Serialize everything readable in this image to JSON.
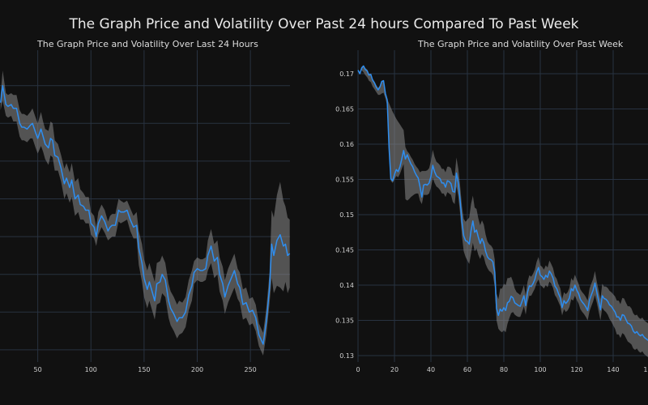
{
  "title": "The Graph Price and Volatility Over Past 24 hours Compared To Past Week",
  "colors": {
    "background": "#111111",
    "grid": "#283241",
    "price_line": "#2e8ef0",
    "volatility_band": "#8a8a8a"
  },
  "chart_data": [
    {
      "type": "line",
      "title": "The Graph Price and Volatility Over Last 24 Hours",
      "xlabel": "",
      "ylabel": "",
      "xlim": [
        15,
        287
      ],
      "ylim": [
        0,
        9
      ],
      "grid": true,
      "legend": "none",
      "x_ticks": [
        50,
        100,
        150,
        200,
        250
      ],
      "y_ticks": [
        1,
        2,
        3,
        4,
        5,
        6,
        7,
        8
      ],
      "y_tick_labels_visible": false,
      "series": [
        {
          "name": "Price",
          "x": [
            15,
            17,
            20,
            22,
            25,
            27,
            30,
            33,
            35,
            37,
            40,
            43,
            45,
            48,
            50,
            53,
            55,
            57,
            60,
            62,
            64,
            66,
            69,
            70,
            72,
            75,
            77,
            80,
            82,
            85,
            88,
            90,
            93,
            95,
            98,
            100,
            103,
            105,
            107,
            110,
            113,
            116,
            118,
            120,
            123,
            126,
            128,
            131,
            134,
            137,
            140,
            143,
            145,
            148,
            150,
            153,
            155,
            158,
            160,
            162,
            165,
            167,
            170,
            173,
            175,
            178,
            181,
            183,
            186,
            189,
            192,
            195,
            197,
            200,
            203,
            205,
            208,
            210,
            213,
            216,
            219,
            221,
            224,
            226,
            229,
            232,
            235,
            238,
            240,
            243,
            246,
            249,
            252,
            255,
            258,
            262,
            265,
            268,
            270,
            272,
            275,
            278,
            281,
            283,
            285,
            287
          ],
          "values": [
            7.55,
            8.0,
            7.5,
            7.45,
            7.5,
            7.4,
            7.4,
            7.0,
            6.9,
            6.9,
            6.85,
            6.95,
            7.0,
            6.75,
            6.6,
            6.85,
            6.65,
            6.45,
            6.35,
            6.6,
            6.55,
            6.15,
            6.1,
            6.0,
            5.8,
            5.4,
            5.55,
            5.3,
            5.5,
            5.0,
            5.1,
            4.85,
            4.8,
            4.7,
            4.7,
            4.35,
            4.25,
            4.0,
            4.35,
            4.55,
            4.4,
            4.15,
            4.25,
            4.3,
            4.3,
            4.7,
            4.65,
            4.65,
            4.7,
            4.45,
            4.25,
            4.3,
            3.7,
            3.3,
            2.9,
            2.6,
            2.8,
            2.5,
            2.3,
            2.75,
            2.8,
            3.0,
            2.85,
            2.3,
            2.1,
            1.95,
            1.75,
            1.85,
            1.85,
            2.0,
            2.45,
            2.7,
            3.05,
            3.15,
            3.1,
            3.1,
            3.15,
            3.5,
            3.75,
            3.35,
            3.45,
            3.0,
            2.75,
            2.4,
            2.7,
            2.9,
            3.1,
            2.75,
            2.65,
            2.2,
            2.25,
            2.0,
            2.05,
            1.85,
            1.4,
            1.15,
            1.75,
            2.65,
            3.8,
            3.5,
            3.9,
            4.05,
            3.75,
            3.8,
            3.5,
            3.55
          ],
          "band_half_width": [
            0.2,
            0.4,
            0.3,
            0.3,
            0.3,
            0.35,
            0.35,
            0.35,
            0.35,
            0.35,
            0.35,
            0.35,
            0.4,
            0.4,
            0.4,
            0.45,
            0.4,
            0.4,
            0.45,
            0.45,
            0.45,
            0.4,
            0.35,
            0.35,
            0.35,
            0.4,
            0.4,
            0.4,
            0.45,
            0.45,
            0.45,
            0.4,
            0.35,
            0.35,
            0.35,
            0.3,
            0.3,
            0.25,
            0.3,
            0.3,
            0.3,
            0.25,
            0.3,
            0.3,
            0.3,
            0.3,
            0.3,
            0.25,
            0.25,
            0.3,
            0.3,
            0.35,
            0.45,
            0.5,
            0.5,
            0.5,
            0.5,
            0.5,
            0.5,
            0.55,
            0.55,
            0.5,
            0.45,
            0.45,
            0.45,
            0.45,
            0.45,
            0.45,
            0.4,
            0.4,
            0.4,
            0.4,
            0.3,
            0.3,
            0.3,
            0.3,
            0.3,
            0.4,
            0.45,
            0.45,
            0.45,
            0.45,
            0.45,
            0.45,
            0.45,
            0.45,
            0.45,
            0.4,
            0.4,
            0.4,
            0.4,
            0.35,
            0.35,
            0.35,
            0.3,
            0.3,
            0.35,
            0.4,
            0.9,
            1.0,
            1.2,
            1.4,
            1.2,
            1.0,
            1.0,
            0.9
          ]
        }
      ]
    },
    {
      "type": "line",
      "title": "The Graph Price and Volatility Over Past Week",
      "xlabel": "",
      "ylabel": "",
      "xlim": [
        0,
        160
      ],
      "ylim": [
        0.1295,
        0.1735
      ],
      "grid": true,
      "legend": "none",
      "x_ticks": [
        0,
        20,
        40,
        60,
        80,
        100,
        120,
        140
      ],
      "x_tick_labels": [
        "0",
        "20",
        "40",
        "60",
        "80",
        "100",
        "120",
        "140"
      ],
      "y_ticks": [
        0.13,
        0.135,
        0.14,
        0.145,
        0.15,
        0.155,
        0.16,
        0.165,
        0.17
      ],
      "y_tick_labels": [
        "0.13",
        "0.135",
        "0.14",
        "0.145",
        "0.15",
        "0.155",
        "0.16",
        "0.165",
        "0.17"
      ],
      "series": [
        {
          "name": "Price",
          "x": [
            0,
            1,
            2,
            3,
            4,
            5,
            6,
            7,
            8,
            9,
            10,
            11,
            12,
            13,
            14,
            15,
            16,
            17,
            18,
            19,
            20,
            21,
            22,
            23,
            24,
            25,
            26,
            27,
            28,
            29,
            30,
            31,
            32,
            33,
            34,
            35,
            36,
            37,
            38,
            39,
            40,
            41,
            42,
            43,
            44,
            45,
            46,
            47,
            48,
            49,
            50,
            51,
            52,
            53,
            54,
            55,
            56,
            57,
            58,
            59,
            60,
            61,
            62,
            63,
            64,
            65,
            66,
            67,
            68,
            69,
            70,
            71,
            72,
            73,
            74,
            75,
            76,
            77,
            78,
            79,
            80,
            81,
            82,
            83,
            84,
            85,
            86,
            87,
            88,
            89,
            90,
            91,
            92,
            93,
            94,
            95,
            96,
            97,
            98,
            99,
            100,
            101,
            102,
            103,
            104,
            105,
            106,
            107,
            108,
            109,
            110,
            111,
            112,
            113,
            114,
            115,
            116,
            117,
            118,
            119,
            120,
            121,
            122,
            123,
            124,
            125,
            126,
            127,
            128,
            129,
            130,
            131,
            132,
            133,
            134,
            135,
            136,
            137,
            138,
            139,
            140,
            141,
            142,
            143,
            144,
            145,
            146,
            147,
            148,
            149,
            150,
            151,
            152,
            153,
            154,
            155,
            156,
            157,
            158,
            159,
            160
          ],
          "values": [
            0.1705,
            0.17,
            0.1708,
            0.1711,
            0.1706,
            0.1704,
            0.1698,
            0.1699,
            0.1691,
            0.1687,
            0.1681,
            0.1677,
            0.1681,
            0.1689,
            0.169,
            0.1672,
            0.1663,
            0.1595,
            0.1551,
            0.1548,
            0.1557,
            0.1564,
            0.1561,
            0.1568,
            0.1579,
            0.1591,
            0.1579,
            0.1585,
            0.1578,
            0.1572,
            0.1568,
            0.1561,
            0.1556,
            0.1552,
            0.154,
            0.1525,
            0.1542,
            0.1543,
            0.1542,
            0.1545,
            0.1554,
            0.157,
            0.1561,
            0.1555,
            0.1553,
            0.1551,
            0.1545,
            0.1545,
            0.1539,
            0.1548,
            0.1547,
            0.1544,
            0.1533,
            0.1532,
            0.1559,
            0.1545,
            0.1521,
            0.149,
            0.147,
            0.1463,
            0.1462,
            0.1458,
            0.1477,
            0.1491,
            0.1475,
            0.1478,
            0.1468,
            0.1459,
            0.1466,
            0.146,
            0.1448,
            0.144,
            0.1437,
            0.1436,
            0.1433,
            0.1418,
            0.1367,
            0.1357,
            0.1366,
            0.1363,
            0.1368,
            0.1364,
            0.1375,
            0.1377,
            0.1384,
            0.1382,
            0.1375,
            0.1373,
            0.1371,
            0.137,
            0.1377,
            0.1385,
            0.1371,
            0.139,
            0.1399,
            0.1398,
            0.1402,
            0.1408,
            0.1418,
            0.1425,
            0.1414,
            0.1412,
            0.1408,
            0.1414,
            0.1411,
            0.142,
            0.1416,
            0.141,
            0.1399,
            0.1395,
            0.1388,
            0.1382,
            0.1368,
            0.1378,
            0.1374,
            0.1377,
            0.1382,
            0.1395,
            0.1392,
            0.14,
            0.1393,
            0.1388,
            0.138,
            0.1376,
            0.1373,
            0.1369,
            0.1364,
            0.1379,
            0.1386,
            0.1393,
            0.1403,
            0.139,
            0.1378,
            0.1365,
            0.1385,
            0.1381,
            0.138,
            0.1377,
            0.1372,
            0.137,
            0.1366,
            0.1362,
            0.1355,
            0.1355,
            0.135,
            0.1358,
            0.1357,
            0.1351,
            0.1346,
            0.1345,
            0.1342,
            0.1335,
            0.1332,
            0.1334,
            0.133,
            0.1328,
            0.133,
            0.1326,
            0.1324,
            0.1322,
            0.132
          ],
          "band_low": [
            0.1705,
            0.17,
            0.1705,
            0.1702,
            0.1698,
            0.1695,
            0.169,
            0.1688,
            0.1682,
            0.1678,
            0.1674,
            0.167,
            0.167,
            0.1672,
            0.1673,
            0.1665,
            0.1655,
            0.159,
            0.1548,
            0.1545,
            0.155,
            0.1555,
            0.1553,
            0.1558,
            0.1565,
            0.1572,
            0.1522,
            0.152,
            0.1522,
            0.1525,
            0.1527,
            0.1529,
            0.153,
            0.153,
            0.152,
            0.1515,
            0.1528,
            0.1528,
            0.1528,
            0.153,
            0.1538,
            0.1552,
            0.1545,
            0.154,
            0.1538,
            0.1535,
            0.153,
            0.153,
            0.1525,
            0.1532,
            0.153,
            0.1528,
            0.1518,
            0.1515,
            0.154,
            0.1526,
            0.1502,
            0.147,
            0.1448,
            0.144,
            0.1435,
            0.143,
            0.1445,
            0.146,
            0.1448,
            0.1452,
            0.1443,
            0.1437,
            0.1444,
            0.144,
            0.143,
            0.1424,
            0.142,
            0.1418,
            0.1414,
            0.1398,
            0.135,
            0.1338,
            0.1335,
            0.1333,
            0.1336,
            0.1333,
            0.1345,
            0.1353,
            0.136,
            0.1362,
            0.1358,
            0.1356,
            0.1355,
            0.1355,
            0.1362,
            0.137,
            0.1358,
            0.1375,
            0.1385,
            0.1385,
            0.139,
            0.1395,
            0.1403,
            0.1408,
            0.14,
            0.1398,
            0.1395,
            0.14,
            0.1397,
            0.1405,
            0.1402,
            0.1396,
            0.1386,
            0.1382,
            0.1376,
            0.137,
            0.1357,
            0.1366,
            0.1362,
            0.1364,
            0.1369,
            0.138,
            0.1378,
            0.1385,
            0.1379,
            0.1374,
            0.1366,
            0.1362,
            0.1359,
            0.1355,
            0.135,
            0.1363,
            0.137,
            0.1377,
            0.1386,
            0.1375,
            0.1363,
            0.135,
            0.1368,
            0.1364,
            0.1362,
            0.1358,
            0.1352,
            0.1348,
            0.1343,
            0.1338,
            0.133,
            0.133,
            0.1325,
            0.1332,
            0.133,
            0.1325,
            0.132,
            0.1318,
            0.1316,
            0.131,
            0.1308,
            0.131,
            0.1306,
            0.1304,
            0.1306,
            0.1302,
            0.13,
            0.1298,
            0.1296
          ],
          "band_high": [
            0.1705,
            0.1702,
            0.171,
            0.1712,
            0.1708,
            0.1706,
            0.17,
            0.17,
            0.1693,
            0.1689,
            0.1684,
            0.168,
            0.1683,
            0.169,
            0.1691,
            0.1673,
            0.1664,
            0.1658,
            0.1652,
            0.1646,
            0.1641,
            0.1636,
            0.1632,
            0.1628,
            0.1624,
            0.162,
            0.1596,
            0.159,
            0.1587,
            0.1582,
            0.1578,
            0.1572,
            0.1568,
            0.1565,
            0.156,
            0.1562,
            0.1562,
            0.1562,
            0.1563,
            0.1566,
            0.1576,
            0.1592,
            0.1582,
            0.1575,
            0.1573,
            0.157,
            0.1565,
            0.1565,
            0.156,
            0.1568,
            0.1568,
            0.1566,
            0.1556,
            0.1555,
            0.1581,
            0.1565,
            0.1542,
            0.1512,
            0.1494,
            0.149,
            0.1493,
            0.1496,
            0.1515,
            0.1527,
            0.151,
            0.1508,
            0.1495,
            0.1485,
            0.1492,
            0.1486,
            0.1472,
            0.1462,
            0.1458,
            0.1456,
            0.1452,
            0.1436,
            0.1388,
            0.138,
            0.1395,
            0.1395,
            0.1402,
            0.14,
            0.141,
            0.141,
            0.1412,
            0.1405,
            0.1395,
            0.139,
            0.1388,
            0.1386,
            0.1392,
            0.14,
            0.1386,
            0.1405,
            0.1414,
            0.1412,
            0.1416,
            0.1422,
            0.1433,
            0.144,
            0.1428,
            0.1426,
            0.1422,
            0.1428,
            0.1425,
            0.1435,
            0.143,
            0.1424,
            0.1413,
            0.1409,
            0.1401,
            0.1395,
            0.138,
            0.139,
            0.1387,
            0.139,
            0.1396,
            0.141,
            0.1406,
            0.1415,
            0.1408,
            0.1402,
            0.1394,
            0.139,
            0.1387,
            0.1383,
            0.1378,
            0.1395,
            0.1402,
            0.1409,
            0.142,
            0.1405,
            0.1393,
            0.138,
            0.1402,
            0.1398,
            0.1398,
            0.1396,
            0.1392,
            0.139,
            0.1387,
            0.1384,
            0.1378,
            0.1378,
            0.1373,
            0.1382,
            0.1381,
            0.1375,
            0.137,
            0.137,
            0.1367,
            0.136,
            0.1357,
            0.1358,
            0.1354,
            0.1352,
            0.1354,
            0.135,
            0.1348,
            0.1346,
            0.1344
          ]
        }
      ]
    }
  ]
}
